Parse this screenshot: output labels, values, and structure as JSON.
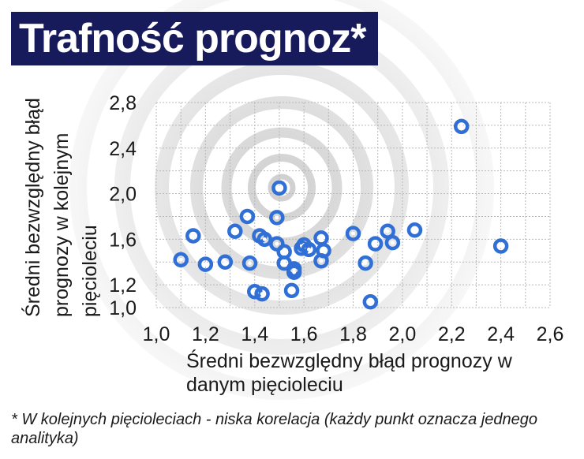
{
  "title": "Trafność prognoz*",
  "footnote": "* W kolejnych pięcioleciach - niska korelacja (każdy punkt oznacza jednego analityka)",
  "colors": {
    "title_bg": "#171b5c",
    "point": "#2f6fd6",
    "grid": "#b8b8b8"
  },
  "chart_data": {
    "type": "scatter",
    "xlabel": "Średni bezwzględny błąd prognozy w danym pięcioleciu",
    "ylabel": "Średni bezwzględny błąd prognozy w kolejnym pięcioleciu",
    "xlim": [
      1.0,
      2.6
    ],
    "ylim": [
      1.0,
      2.8
    ],
    "xticks": [
      "1,0",
      "1,2",
      "1,4",
      "1,6",
      "1,8",
      "2,0",
      "2,2",
      "2,4",
      "2,6"
    ],
    "yticks": [
      "1,0",
      "1,2",
      "1,6",
      "2,0",
      "2,4",
      "2,8"
    ],
    "grid": true,
    "points": [
      [
        1.1,
        1.42
      ],
      [
        1.15,
        1.63
      ],
      [
        1.2,
        1.38
      ],
      [
        1.28,
        1.4
      ],
      [
        1.32,
        1.67
      ],
      [
        1.37,
        1.8
      ],
      [
        1.38,
        1.39
      ],
      [
        1.4,
        1.14
      ],
      [
        1.42,
        1.63
      ],
      [
        1.43,
        1.12
      ],
      [
        1.44,
        1.6
      ],
      [
        1.49,
        1.79
      ],
      [
        1.49,
        1.56
      ],
      [
        1.5,
        2.05
      ],
      [
        1.52,
        1.49
      ],
      [
        1.52,
        1.39
      ],
      [
        1.55,
        1.15
      ],
      [
        1.56,
        1.34
      ],
      [
        1.56,
        1.31
      ],
      [
        1.59,
        1.52
      ],
      [
        1.6,
        1.55
      ],
      [
        1.62,
        1.51
      ],
      [
        1.67,
        1.41
      ],
      [
        1.67,
        1.61
      ],
      [
        1.68,
        1.5
      ],
      [
        1.8,
        1.65
      ],
      [
        1.85,
        1.39
      ],
      [
        1.87,
        1.05
      ],
      [
        1.89,
        1.56
      ],
      [
        1.94,
        1.67
      ],
      [
        1.96,
        1.57
      ],
      [
        2.05,
        1.68
      ],
      [
        2.24,
        2.59
      ],
      [
        2.4,
        1.54
      ]
    ]
  }
}
